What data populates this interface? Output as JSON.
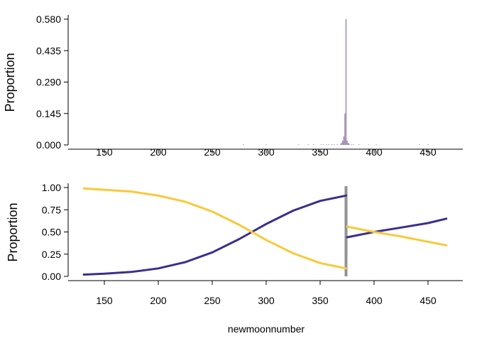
{
  "chart_data": [
    {
      "type": "bar",
      "panel": "top",
      "title": "",
      "xlabel": "",
      "ylabel": "Proportion",
      "xlim": [
        120,
        470
      ],
      "ylim": [
        0,
        0.58
      ],
      "x_ticks": [
        "150",
        "200",
        "250",
        "300",
        "350",
        "400",
        "450"
      ],
      "y_ticks": [
        "0.000",
        "0.145",
        "0.290",
        "0.435",
        "0.580"
      ],
      "bar_color": "#a38fb5",
      "bars": [
        {
          "x": 279,
          "y": 0.001
        },
        {
          "x": 300,
          "y": 0.001
        },
        {
          "x": 330,
          "y": 0.001
        },
        {
          "x": 339,
          "y": 0.001
        },
        {
          "x": 344,
          "y": 0.001
        },
        {
          "x": 351,
          "y": 0.002
        },
        {
          "x": 353,
          "y": 0.002
        },
        {
          "x": 356,
          "y": 0.002
        },
        {
          "x": 358,
          "y": 0.002
        },
        {
          "x": 361,
          "y": 0.003
        },
        {
          "x": 363,
          "y": 0.002
        },
        {
          "x": 366,
          "y": 0.003
        },
        {
          "x": 369,
          "y": 0.005
        },
        {
          "x": 370,
          "y": 0.01
        },
        {
          "x": 371,
          "y": 0.02
        },
        {
          "x": 372,
          "y": 0.04
        },
        {
          "x": 373,
          "y": 0.145
        },
        {
          "x": 374,
          "y": 0.58
        },
        {
          "x": 375,
          "y": 0.02
        },
        {
          "x": 376,
          "y": 0.01
        },
        {
          "x": 377,
          "y": 0.004
        },
        {
          "x": 379,
          "y": 0.002
        },
        {
          "x": 381,
          "y": 0.001
        },
        {
          "x": 386,
          "y": 0.001
        },
        {
          "x": 395,
          "y": 0.001
        },
        {
          "x": 402,
          "y": 0.001
        },
        {
          "x": 442,
          "y": 0.001
        },
        {
          "x": 450,
          "y": 0.001
        }
      ]
    },
    {
      "type": "line",
      "panel": "bottom",
      "title": "",
      "xlabel": "newmoonnumber",
      "ylabel": "Proportion",
      "xlim": [
        120,
        470
      ],
      "ylim": [
        0,
        1
      ],
      "x_ticks": [
        "150",
        "200",
        "250",
        "300",
        "350",
        "400",
        "450"
      ],
      "y_ticks": [
        "0.00",
        "0.25",
        "0.50",
        "0.75",
        "1.00"
      ],
      "changepoint": {
        "x": 374,
        "color": "#7f7f7f"
      },
      "series": [
        {
          "color": "#3b2f8a",
          "segments": [
            {
              "x": [
                131,
                150,
                175,
                200,
                225,
                250,
                275,
                300,
                325,
                350,
                374
              ],
              "y": [
                0.02,
                0.03,
                0.05,
                0.09,
                0.16,
                0.27,
                0.42,
                0.59,
                0.74,
                0.85,
                0.91
              ]
            },
            {
              "x": [
                375,
                400,
                425,
                450,
                467
              ],
              "y": [
                0.44,
                0.5,
                0.55,
                0.6,
                0.65
              ]
            }
          ]
        },
        {
          "color": "#f9c93a",
          "segments": [
            {
              "x": [
                131,
                150,
                175,
                200,
                225,
                250,
                275,
                300,
                325,
                350,
                374
              ],
              "y": [
                0.99,
                0.975,
                0.955,
                0.91,
                0.84,
                0.73,
                0.58,
                0.41,
                0.26,
                0.15,
                0.09
              ]
            },
            {
              "x": [
                375,
                400,
                425,
                450,
                467
              ],
              "y": [
                0.56,
                0.5,
                0.45,
                0.39,
                0.35
              ]
            }
          ]
        }
      ]
    }
  ]
}
